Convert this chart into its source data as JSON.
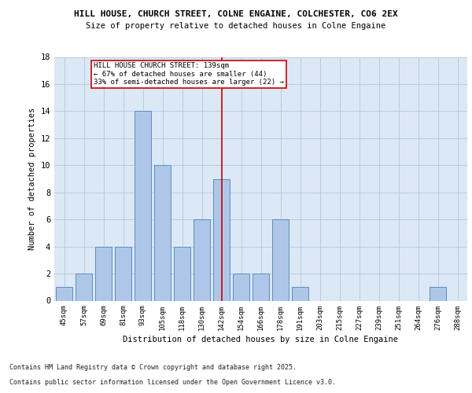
{
  "title1": "HILL HOUSE, CHURCH STREET, COLNE ENGAINE, COLCHESTER, CO6 2EX",
  "title2": "Size of property relative to detached houses in Colne Engaine",
  "xlabel": "Distribution of detached houses by size in Colne Engaine",
  "ylabel": "Number of detached properties",
  "categories": [
    "45sqm",
    "57sqm",
    "69sqm",
    "81sqm",
    "93sqm",
    "105sqm",
    "118sqm",
    "130sqm",
    "142sqm",
    "154sqm",
    "166sqm",
    "178sqm",
    "191sqm",
    "203sqm",
    "215sqm",
    "227sqm",
    "239sqm",
    "251sqm",
    "264sqm",
    "276sqm",
    "288sqm"
  ],
  "values": [
    1,
    2,
    4,
    4,
    14,
    10,
    4,
    6,
    9,
    2,
    2,
    6,
    1,
    0,
    0,
    0,
    0,
    0,
    0,
    1,
    0
  ],
  "bar_color": "#aec6e8",
  "bar_edge_color": "#5a8fc2",
  "vline_idx": 8,
  "vline_color": "#cc0000",
  "annotation_text": "HILL HOUSE CHURCH STREET: 139sqm\n← 67% of detached houses are smaller (44)\n33% of semi-detached houses are larger (22) →",
  "annotation_box_color": "#ffffff",
  "annotation_box_edge": "#cc0000",
  "ylim": [
    0,
    18
  ],
  "yticks": [
    0,
    2,
    4,
    6,
    8,
    10,
    12,
    14,
    16,
    18
  ],
  "background_color": "#dce8f5",
  "footer1": "Contains HM Land Registry data © Crown copyright and database right 2025.",
  "footer2": "Contains public sector information licensed under the Open Government Licence v3.0."
}
